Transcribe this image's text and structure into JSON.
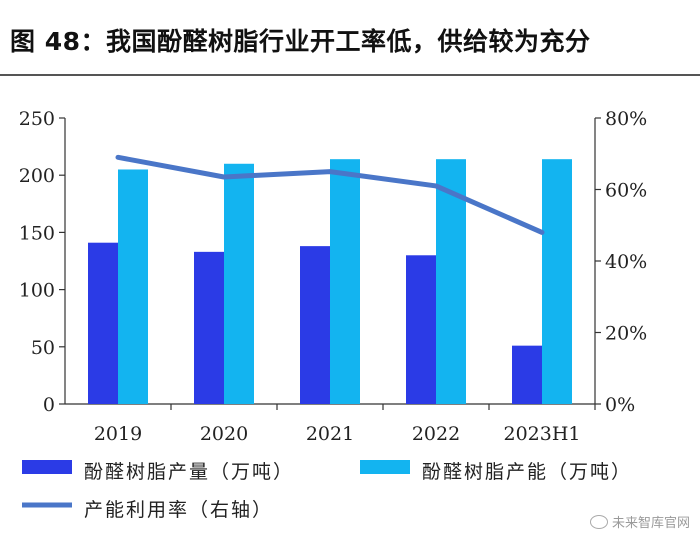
{
  "header": {
    "title": "图 48：我国酚醛树脂行业开工率低，供给较为充分"
  },
  "chart_data": {
    "type": "bar",
    "categories": [
      "2019",
      "2020",
      "2021",
      "2022",
      "2023H1"
    ],
    "series": [
      {
        "name": "酚醛树脂产量（万吨）",
        "kind": "bar",
        "axis": "left",
        "color": "#2b3be6",
        "values": [
          141,
          133,
          138,
          130,
          51
        ]
      },
      {
        "name": "酚醛树脂产能（万吨）",
        "kind": "bar",
        "axis": "left",
        "color": "#13b4f0",
        "values": [
          205,
          210,
          214,
          214,
          214
        ]
      },
      {
        "name": "产能利用率（右轴）",
        "kind": "line",
        "axis": "right",
        "color": "#4a76c8",
        "values": [
          69,
          63.5,
          65,
          61,
          48
        ]
      }
    ],
    "yaxis_left": {
      "min": 0,
      "max": 250,
      "ticks": [
        "0",
        "50",
        "100",
        "150",
        "200",
        "250"
      ]
    },
    "yaxis_right": {
      "min": 0,
      "max": 80,
      "ticks": [
        "0%",
        "20%",
        "40%",
        "60%",
        "80%"
      ]
    },
    "grid": false,
    "legend_position": "bottom"
  },
  "watermark": "未来智库官网"
}
